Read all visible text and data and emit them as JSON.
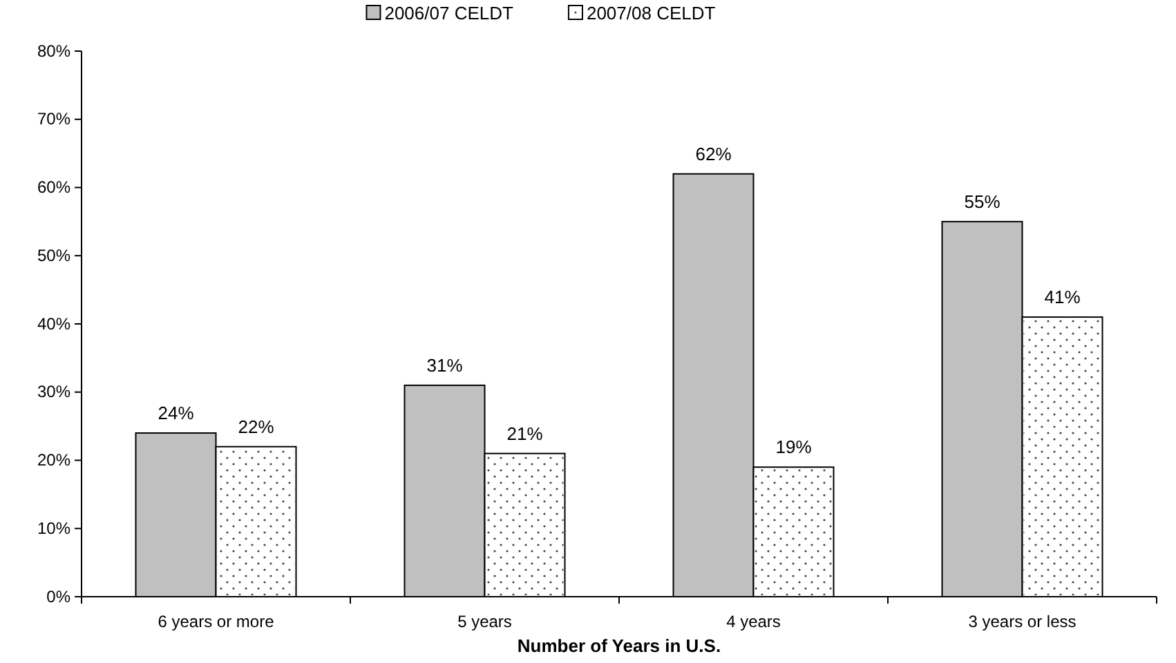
{
  "chart_data": {
    "type": "bar",
    "xlabel": "Number of Years in U.S.",
    "categories": [
      "6 years or more",
      "5 years",
      "4 years",
      "3 years or less"
    ],
    "series": [
      {
        "name": "2006/07 CELDT",
        "color": "#c0c0c0",
        "values": [
          24,
          31,
          62,
          55
        ],
        "value_labels": [
          "24%",
          "31%",
          "62%",
          "55%"
        ]
      },
      {
        "name": "2007/08 CELDT",
        "color": "#ffffff",
        "values": [
          22,
          21,
          19,
          41
        ],
        "value_labels": [
          "22%",
          "21%",
          "19%",
          "41%"
        ]
      }
    ],
    "ylim": [
      0,
      80
    ],
    "yticks": [
      {
        "value": 0,
        "label": "0%"
      },
      {
        "value": 10,
        "label": "10%"
      },
      {
        "value": 20,
        "label": "20%"
      },
      {
        "value": 30,
        "label": "30%"
      },
      {
        "value": 40,
        "label": "40%"
      },
      {
        "value": 50,
        "label": "50%"
      },
      {
        "value": 60,
        "label": "60%"
      },
      {
        "value": 70,
        "label": "70%"
      },
      {
        "value": 80,
        "label": "80%"
      }
    ],
    "legend": "top",
    "grid": false
  }
}
